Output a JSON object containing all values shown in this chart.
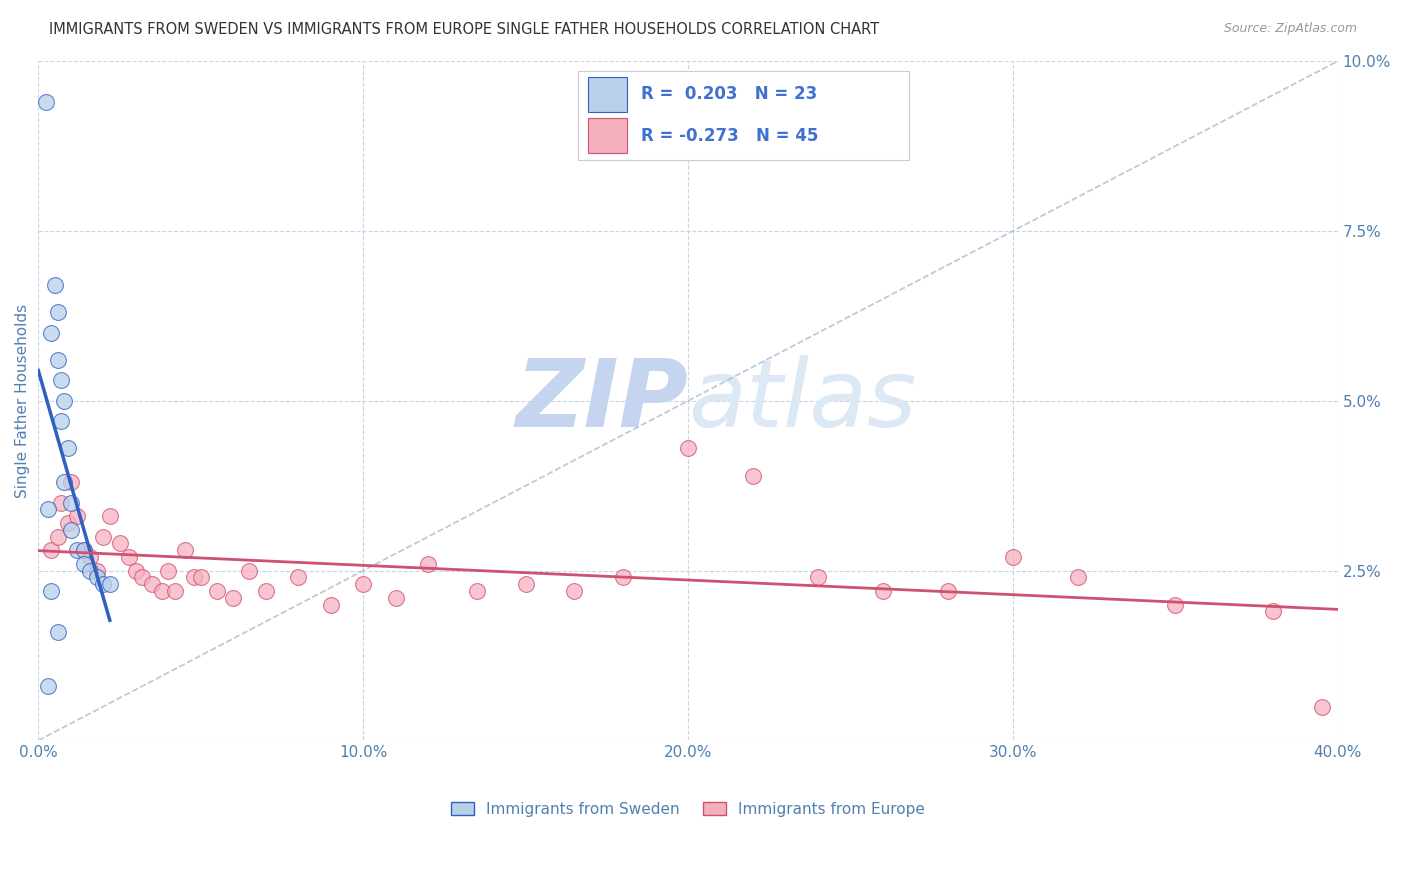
{
  "title": "IMMIGRANTS FROM SWEDEN VS IMMIGRANTS FROM EUROPE SINGLE FATHER HOUSEHOLDS CORRELATION CHART",
  "source": "Source: ZipAtlas.com",
  "ylabel": "Single Father Households",
  "legend_label1": "Immigrants from Sweden",
  "legend_label2": "Immigrants from Europe",
  "R1": 0.203,
  "N1": 23,
  "R2": -0.273,
  "N2": 45,
  "xmin": 0.0,
  "xmax": 0.4,
  "ymin": 0.0,
  "ymax": 0.1,
  "xticks": [
    0.0,
    0.1,
    0.2,
    0.3,
    0.4
  ],
  "yticks": [
    0.0,
    0.025,
    0.05,
    0.075,
    0.1
  ],
  "ytick_labels": [
    "",
    "2.5%",
    "5.0%",
    "7.5%",
    "10.0%"
  ],
  "xtick_labels": [
    "0.0%",
    "10.0%",
    "20.0%",
    "30.0%",
    "40.0%"
  ],
  "color_sweden": "#b8d0ea",
  "color_europe": "#f5b0c0",
  "line_color_sweden": "#3060c0",
  "line_color_europe": "#d05070",
  "bg_color": "#ffffff",
  "grid_color": "#c8d4e8",
  "title_color": "#333333",
  "axis_label_color": "#5080b0",
  "legend_text_color": "#222222",
  "legend_num_color": "#4070d0",
  "watermark_zip_color": "#c5d5f0",
  "watermark_atlas_color": "#dde8f5",
  "sweden_x": [
    0.0025,
    0.005,
    0.006,
    0.004,
    0.006,
    0.007,
    0.008,
    0.007,
    0.009,
    0.008,
    0.01,
    0.01,
    0.012,
    0.014,
    0.014,
    0.016,
    0.018,
    0.02,
    0.022,
    0.004,
    0.006,
    0.003,
    0.003
  ],
  "sweden_y": [
    0.094,
    0.067,
    0.063,
    0.06,
    0.056,
    0.053,
    0.05,
    0.047,
    0.043,
    0.038,
    0.035,
    0.031,
    0.028,
    0.028,
    0.026,
    0.025,
    0.024,
    0.023,
    0.023,
    0.022,
    0.016,
    0.008,
    0.034
  ],
  "europe_x": [
    0.004,
    0.006,
    0.007,
    0.009,
    0.01,
    0.012,
    0.014,
    0.016,
    0.018,
    0.02,
    0.022,
    0.025,
    0.028,
    0.03,
    0.032,
    0.035,
    0.038,
    0.04,
    0.042,
    0.045,
    0.048,
    0.05,
    0.055,
    0.06,
    0.065,
    0.07,
    0.08,
    0.09,
    0.1,
    0.11,
    0.12,
    0.135,
    0.15,
    0.165,
    0.18,
    0.2,
    0.22,
    0.24,
    0.26,
    0.28,
    0.3,
    0.32,
    0.35,
    0.38,
    0.395
  ],
  "europe_y": [
    0.028,
    0.03,
    0.035,
    0.032,
    0.038,
    0.033,
    0.028,
    0.027,
    0.025,
    0.03,
    0.033,
    0.029,
    0.027,
    0.025,
    0.024,
    0.023,
    0.022,
    0.025,
    0.022,
    0.028,
    0.024,
    0.024,
    0.022,
    0.021,
    0.025,
    0.022,
    0.024,
    0.02,
    0.023,
    0.021,
    0.026,
    0.022,
    0.023,
    0.022,
    0.024,
    0.043,
    0.039,
    0.024,
    0.022,
    0.022,
    0.027,
    0.024,
    0.02,
    0.019,
    0.005
  ],
  "sweden_trend_x": [
    0.0,
    0.022
  ],
  "europe_trend_x": [
    0.0,
    0.395
  ]
}
